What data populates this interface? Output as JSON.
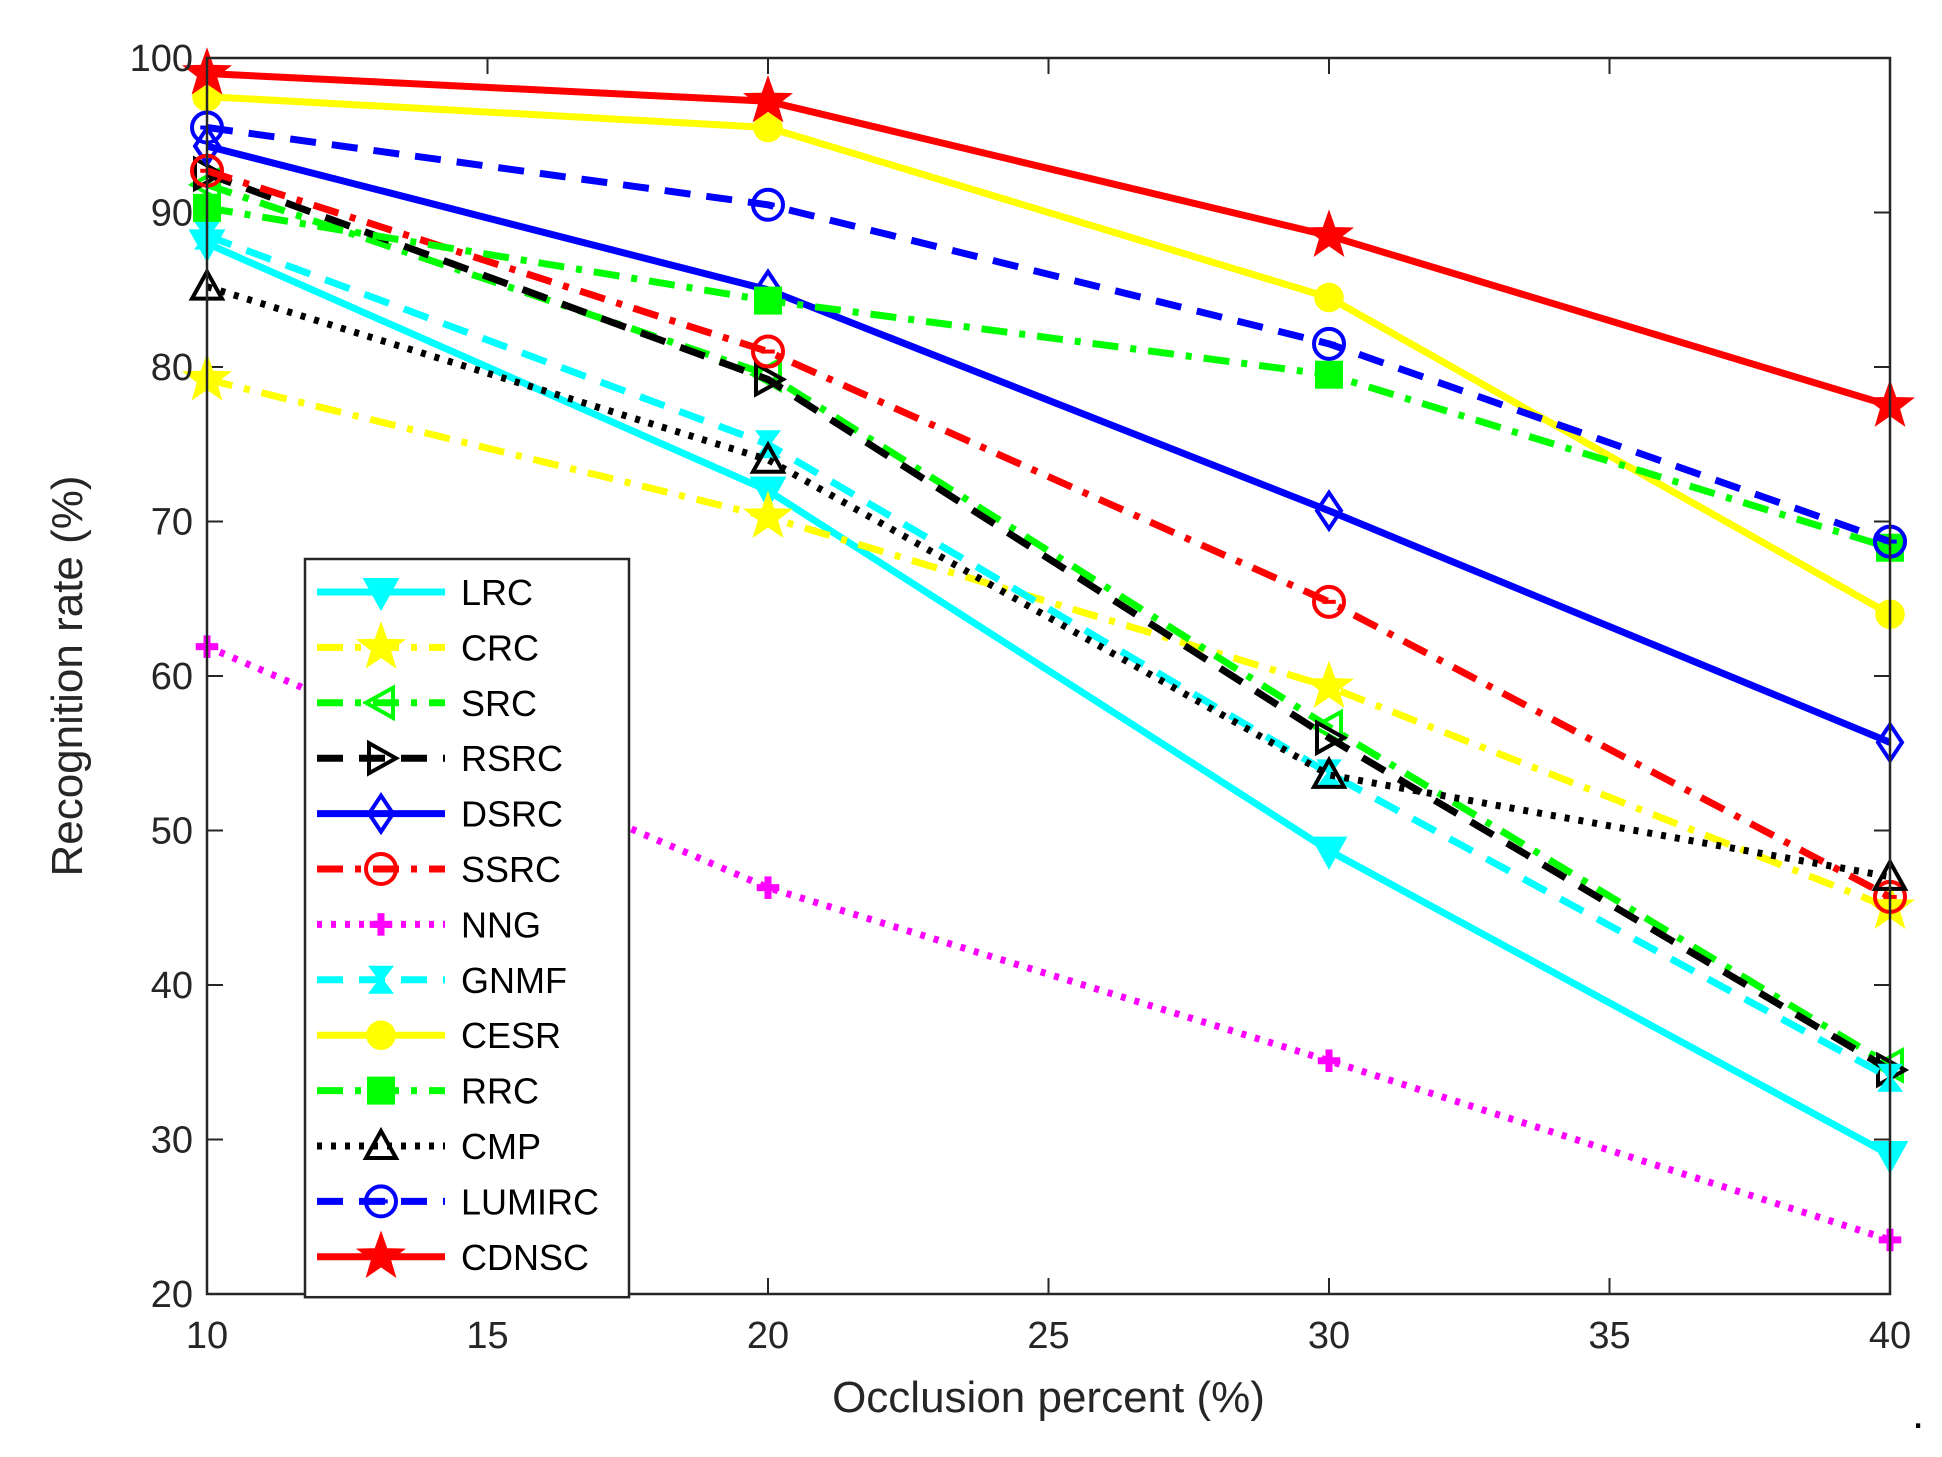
{
  "chart_data": {
    "type": "line",
    "title": "",
    "xlabel": "Occlusion percent (%)",
    "ylabel": "Recognition rate (%)",
    "x": [
      10,
      20,
      30,
      40
    ],
    "xlim": [
      10,
      40
    ],
    "ylim": [
      20,
      100
    ],
    "xticks": [
      "10",
      "15",
      "20",
      "25",
      "30",
      "35",
      "40"
    ],
    "yticks": [
      "20",
      "30",
      "40",
      "50",
      "60",
      "70",
      "80",
      "90",
      "100"
    ],
    "legend_position": "lower-left",
    "series": [
      {
        "name": "LRC",
        "values": [
          88.0,
          72.0,
          48.7,
          29.0
        ],
        "color": "#00ffff",
        "dash": "solid",
        "marker": "triangle-down"
      },
      {
        "name": "CRC",
        "values": [
          79.2,
          70.3,
          59.3,
          45.0
        ],
        "color": "#ffff00",
        "dash": "dashdot",
        "marker": "pentagram"
      },
      {
        "name": "SRC",
        "values": [
          91.8,
          79.5,
          56.7,
          34.8
        ],
        "color": "#00ff00",
        "dash": "dashdot",
        "marker": "triangle-left"
      },
      {
        "name": "RSRC",
        "values": [
          92.5,
          79.2,
          56.0,
          34.5
        ],
        "color": "#000000",
        "dash": "dashed",
        "marker": "triangle-right"
      },
      {
        "name": "DSRC",
        "values": [
          94.3,
          85.0,
          70.7,
          55.7
        ],
        "color": "#0000ff",
        "dash": "solid",
        "marker": "diamond"
      },
      {
        "name": "SSRC",
        "values": [
          92.7,
          81.0,
          64.8,
          45.7
        ],
        "color": "#ff0000",
        "dash": "dashdot",
        "marker": "circle"
      },
      {
        "name": "NNG",
        "values": [
          61.9,
          46.3,
          35.1,
          23.5
        ],
        "color": "#ff00ff",
        "dash": "dotted",
        "marker": "plus"
      },
      {
        "name": "GNMF",
        "values": [
          88.5,
          75.0,
          53.7,
          34.0
        ],
        "color": "#00ffff",
        "dash": "dashed",
        "marker": "hourglass"
      },
      {
        "name": "CESR",
        "values": [
          97.5,
          95.5,
          84.5,
          64.0
        ],
        "color": "#ffff00",
        "dash": "solid",
        "marker": "filled-circle"
      },
      {
        "name": "RRC",
        "values": [
          90.3,
          84.3,
          79.5,
          68.3
        ],
        "color": "#00ff00",
        "dash": "dashdot",
        "marker": "square"
      },
      {
        "name": "CMP",
        "values": [
          85.2,
          74.0,
          53.6,
          47.0
        ],
        "color": "#000000",
        "dash": "dotted",
        "marker": "triangle-up"
      },
      {
        "name": "LUMIRC",
        "values": [
          95.5,
          90.5,
          81.5,
          68.7
        ],
        "color": "#0000ff",
        "dash": "dashed",
        "marker": "circle"
      },
      {
        "name": "CDNSC",
        "values": [
          99.0,
          97.2,
          88.5,
          77.5
        ],
        "color": "#ff0000",
        "dash": "solid",
        "marker": "pentagram"
      }
    ]
  },
  "footer_mark": "."
}
